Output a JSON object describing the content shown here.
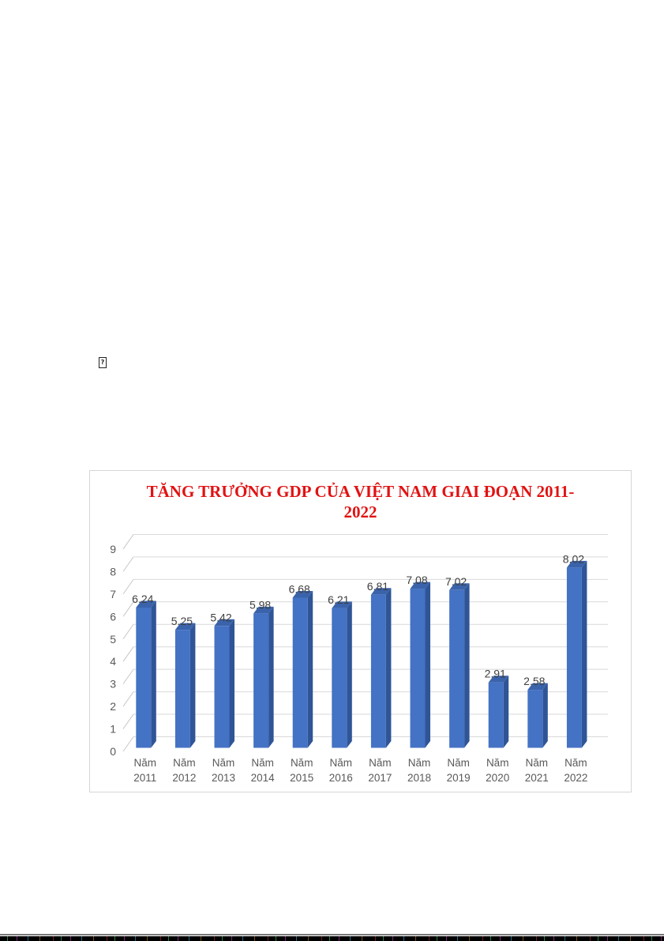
{
  "document": {
    "missing_glyph_char": "?"
  },
  "chart_data": {
    "type": "bar",
    "variant": "3d-clustered-column",
    "title": "TĂNG TRƯỞNG GDP CỦA VIỆT NAM GIAI ĐOẠN 2011-2022",
    "title_lines": [
      "TĂNG TRƯỞNG GDP CỦA VIỆT NAM GIAI ĐOẠN 2011-",
      "2022"
    ],
    "categories": [
      "Năm 2011",
      "Năm 2012",
      "Năm 2013",
      "Năm 2014",
      "Năm 2015",
      "Năm 2016",
      "Năm 2017",
      "Năm 2018",
      "Năm 2019",
      "Năm 2020",
      "Năm 2021",
      "Năm 2022"
    ],
    "values": [
      6.24,
      5.25,
      5.42,
      5.98,
      6.68,
      6.21,
      6.81,
      7.08,
      7.02,
      2.91,
      2.58,
      8.02
    ],
    "xlabel": "",
    "ylabel": "",
    "ylim": [
      0,
      9
    ],
    "yticks": [
      0,
      1,
      2,
      3,
      4,
      5,
      6,
      7,
      8,
      9
    ],
    "grid": true,
    "legend": "none",
    "data_labels": true,
    "colors": {
      "title": "#e11212",
      "bar_front": "#4472c4",
      "bar_side": "#2f5597",
      "bar_top": "#3a63ab",
      "gridline": "#d9d9d9",
      "grid_diagonal": "#c7c7c7",
      "axis_text": "#595959",
      "value_label": "#3f3f3f",
      "frame_border": "#d6d6d6"
    }
  }
}
